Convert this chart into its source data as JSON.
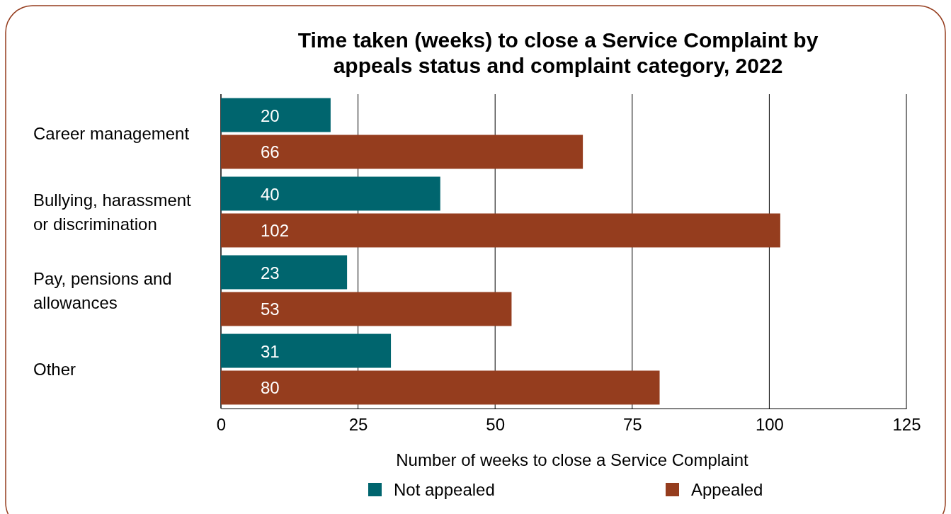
{
  "chart_data": {
    "type": "bar",
    "orientation": "horizontal",
    "title": "Time taken (weeks) to close a Service Complaint by appeals status and complaint category, 2022",
    "xlabel": "Number of weeks to close a Service Complaint",
    "categories": [
      "Career management",
      "Bullying, harassment or discrimination",
      "Pay, pensions and allowances",
      "Other"
    ],
    "series": [
      {
        "name": "Not appealed",
        "color": "#00656e",
        "values": [
          20,
          40,
          23,
          31
        ]
      },
      {
        "name": "Appealed",
        "color": "#953d1e",
        "values": [
          66,
          102,
          53,
          80
        ]
      }
    ],
    "xlim": [
      0,
      125
    ],
    "xticks": [
      0,
      25,
      50,
      75,
      100,
      125
    ],
    "grid": "x",
    "legend": "bottom",
    "data_labels": true
  }
}
